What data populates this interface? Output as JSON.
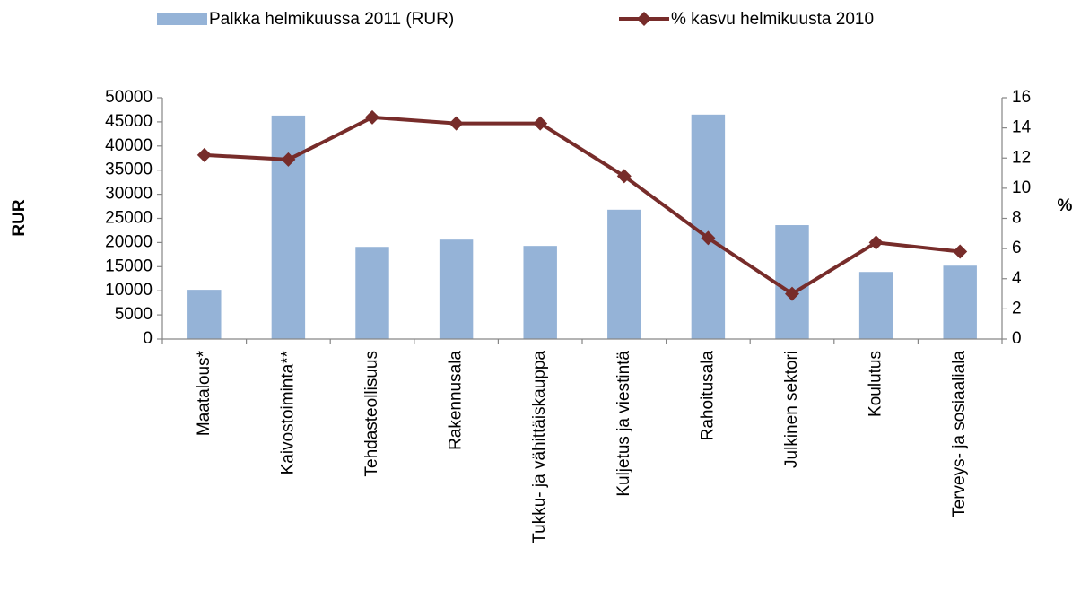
{
  "chart_data": {
    "type": "bar",
    "categories": [
      "Maatalous*",
      "Kaivostoiminta**",
      "Tehdasteollisuus",
      "Rakennusala",
      "Tukku- ja vähittäiskauppa",
      "Kuljetus ja viestintä",
      "Rahoitusala",
      "Julkinen sektori",
      "Koulutus",
      "Terveys- ja sosiaaliala"
    ],
    "series": [
      {
        "name": "Palkka helmikuussa 2011 (RUR)",
        "type": "bar",
        "color": "#95b3d7",
        "values": [
          10200,
          46300,
          19100,
          20600,
          19300,
          26800,
          46500,
          23600,
          13900,
          15200
        ]
      },
      {
        "name": "% kasvu helmikuusta 2010",
        "type": "line",
        "axis": "y2",
        "color": "#772c2a",
        "values": [
          12.2,
          11.9,
          14.7,
          14.3,
          14.3,
          10.8,
          6.7,
          3.0,
          6.4,
          5.8
        ]
      }
    ],
    "ylabel": "RUR",
    "y2label": "%",
    "ylim": [
      0,
      50000
    ],
    "yticks": [
      0,
      5000,
      10000,
      15000,
      20000,
      25000,
      30000,
      35000,
      40000,
      45000,
      50000
    ],
    "y2lim": [
      0,
      16
    ],
    "y2ticks": [
      0,
      2,
      4,
      6,
      8,
      10,
      12,
      14,
      16
    ],
    "grid": false,
    "legend": "top"
  }
}
